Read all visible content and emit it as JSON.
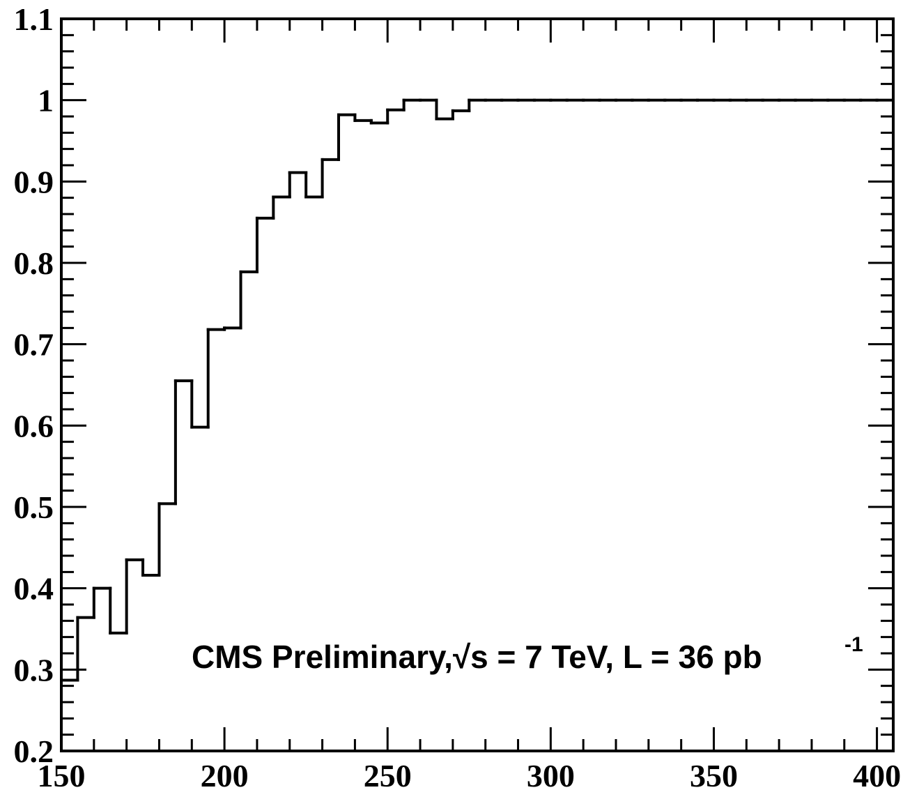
{
  "chart_data": {
    "type": "histogram",
    "annotation": {
      "text": "CMS Preliminary,√s = 7 TeV, L = 36 pb",
      "superscript": "-1"
    },
    "bins": [
      150,
      155,
      160,
      165,
      170,
      175,
      180,
      185,
      190,
      195,
      200,
      205,
      210,
      215,
      220,
      225,
      230,
      235,
      240,
      245,
      250,
      255,
      260,
      265,
      270,
      275,
      280,
      285,
      290,
      295,
      300,
      305,
      310,
      315,
      320,
      325,
      330,
      335,
      340,
      345,
      350,
      355,
      360,
      365,
      370,
      375,
      380,
      385,
      390,
      395,
      400,
      405
    ],
    "values": [
      0.287,
      0.364,
      0.4,
      0.345,
      0.435,
      0.416,
      0.504,
      0.655,
      0.598,
      0.718,
      0.72,
      0.789,
      0.855,
      0.881,
      0.911,
      0.881,
      0.927,
      0.982,
      0.975,
      0.972,
      0.988,
      1.0,
      1.0,
      0.977,
      0.987,
      1.0,
      1.0,
      1.0,
      1.0,
      1.0,
      1.0,
      1.0,
      1.0,
      1.0,
      1.0,
      1.0,
      1.0,
      1.0,
      1.0,
      1.0,
      1.0,
      1.0,
      1.0,
      1.0,
      1.0,
      1.0,
      1.0,
      1.0,
      1.0,
      1.0,
      1.0
    ],
    "color": "#000000",
    "xlim": [
      150,
      405
    ],
    "xticks": [
      150,
      200,
      250,
      300,
      350,
      400
    ],
    "xminorticks": [
      160,
      170,
      180,
      190,
      210,
      220,
      230,
      240,
      260,
      270,
      280,
      290,
      310,
      320,
      330,
      340,
      360,
      370,
      380,
      390
    ],
    "ylim": [
      0.2,
      1.1
    ],
    "yticks": [
      0.2,
      0.3,
      0.4,
      0.5,
      0.6,
      0.7,
      0.8,
      0.9,
      1,
      1.1
    ],
    "yminorticks": [
      0.22,
      0.24,
      0.26,
      0.28,
      0.32,
      0.34,
      0.36,
      0.38,
      0.42,
      0.44,
      0.46,
      0.48,
      0.52,
      0.54,
      0.56,
      0.58,
      0.62,
      0.64,
      0.66,
      0.68,
      0.72,
      0.74,
      0.76,
      0.78,
      0.82,
      0.84,
      0.86,
      0.88,
      0.92,
      0.94,
      0.96,
      0.98,
      1.02,
      1.04,
      1.06,
      1.08
    ]
  }
}
